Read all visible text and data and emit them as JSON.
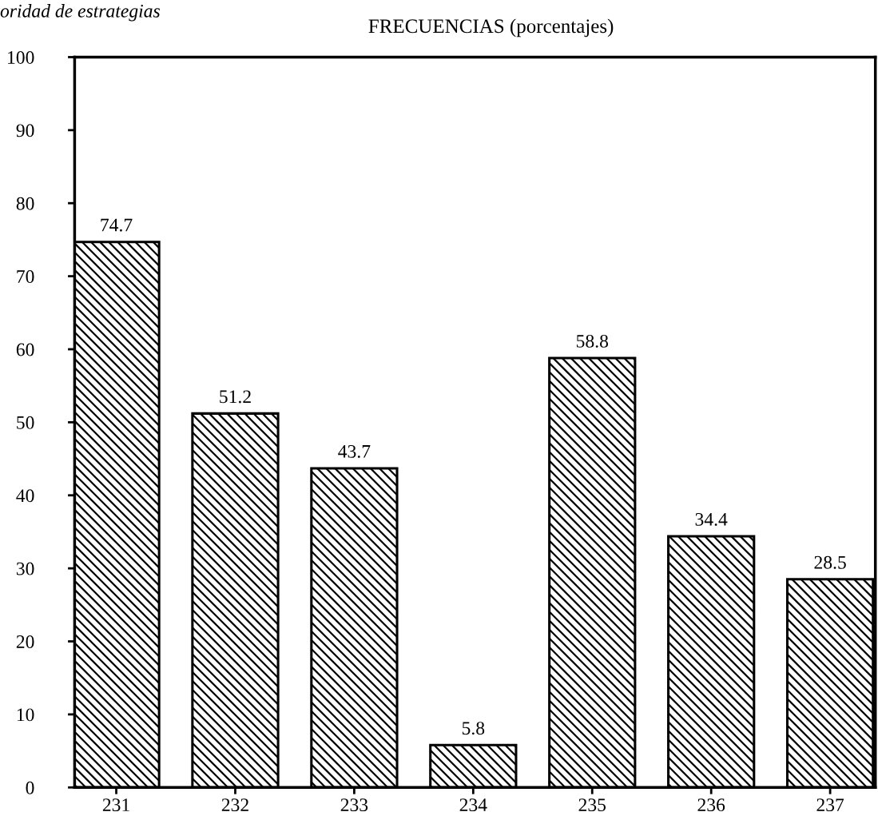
{
  "chart_data": {
    "type": "bar",
    "title": "FRECUENCIAS (porcentajes)",
    "annotations": [
      "oridad de estrategias"
    ],
    "categories": [
      "231",
      "232",
      "233",
      "234",
      "235",
      "236",
      "237"
    ],
    "values": [
      74.7,
      51.2,
      43.7,
      5.8,
      58.8,
      34.4,
      28.5
    ],
    "color": "#000000",
    "data_labels": true,
    "grid": false,
    "legend": false,
    "ylim": [
      0,
      100
    ],
    "yticks": [
      0,
      10,
      20,
      30,
      40,
      50,
      60,
      70,
      80,
      90,
      100
    ]
  }
}
